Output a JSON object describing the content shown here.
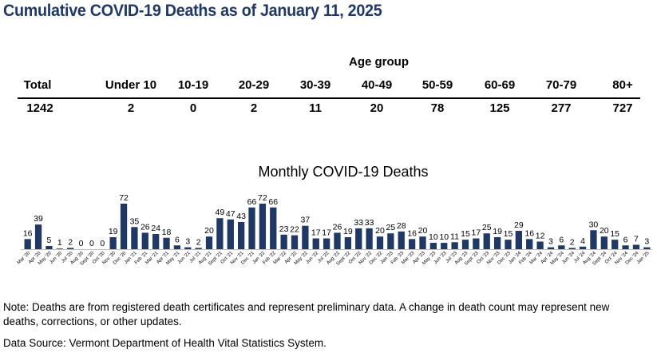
{
  "page": {
    "title": "Cumulative COVID-19 Deaths as of January 11, 2025",
    "age_group_label": "Age group",
    "note": "Note: Deaths are from registered death certificates and represent preliminary data. A change in death count may represent new deaths, corrections, or other updates.",
    "source": "Data Source: Vermont Department of Health Vital Statistics System."
  },
  "table": {
    "headers": [
      "Total",
      "Under 10",
      "10-19",
      "20-29",
      "30-39",
      "40-49",
      "50-59",
      "60-69",
      "70-79",
      "80+"
    ],
    "values": [
      "1242",
      "2",
      "0",
      "2",
      "11",
      "20",
      "78",
      "125",
      "277",
      "727"
    ]
  },
  "chart_data": {
    "type": "bar",
    "title": "Monthly COVID-19 Deaths",
    "color": "#1f3864",
    "categories": [
      "Mar '20",
      "Apr '20",
      "May '20",
      "Jun '20",
      "Jul '20",
      "Aug '20",
      "Sept '20",
      "Oct '20",
      "Nov '20",
      "Dec '20",
      "Jan '21",
      "Feb '21",
      "Mar '21",
      "Apr '21",
      "May '21",
      "Jun '21",
      "Jul '21",
      "Aug '21",
      "Sept '21",
      "Oct '21",
      "Nov '21",
      "Dec '21",
      "Jan '22",
      "Feb '22",
      "Mar '22",
      "Apr '22",
      "May '22",
      "Jun '22",
      "Jul '22",
      "Aug '22",
      "Sept '22",
      "Oct '22",
      "Nov '22",
      "Dec '22",
      "Jan '23",
      "Feb '23",
      "Mar '23",
      "Apr '23",
      "May '23",
      "Jun '23",
      "Jul '23",
      "Aug '23",
      "Sept '23",
      "Oct '23",
      "Nov '23",
      "Dec '23",
      "Jan '24",
      "Feb '24",
      "Mar '24",
      "Apr '24",
      "May '24",
      "Jun '24",
      "Jul '24",
      "Aug '24",
      "Sept '24",
      "Oct '24",
      "Nov '24",
      "Dec '24",
      "Jan '25"
    ],
    "values": [
      16,
      39,
      5,
      1,
      2,
      0,
      0,
      0,
      19,
      72,
      35,
      26,
      24,
      18,
      6,
      3,
      2,
      20,
      49,
      47,
      43,
      66,
      72,
      66,
      23,
      22,
      37,
      17,
      17,
      26,
      19,
      33,
      33,
      20,
      25,
      28,
      16,
      20,
      10,
      10,
      11,
      15,
      17,
      25,
      19,
      15,
      29,
      16,
      12,
      3,
      6,
      2,
      4,
      30,
      20,
      15,
      6,
      7,
      3
    ]
  }
}
